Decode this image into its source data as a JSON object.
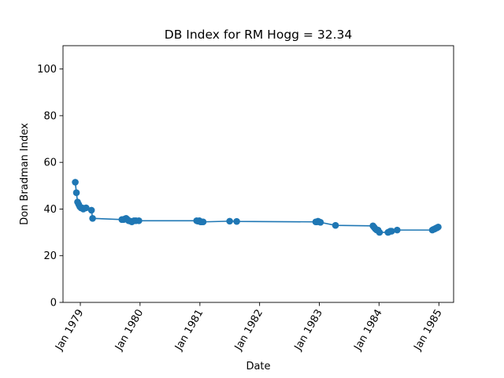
{
  "chart_data": {
    "type": "line",
    "title": "DB Index for RM Hogg = 32.34",
    "xlabel": "Date",
    "ylabel": "Don Bradman Index",
    "xlim": [
      "1978-09-17",
      "1985-04-01"
    ],
    "ylim": [
      0,
      110
    ],
    "x_ticks": [
      "Jan 1979",
      "Jan 1980",
      "Jan 1981",
      "Jan 1982",
      "Jan 1983",
      "Jan 1984",
      "Jan 1985"
    ],
    "y_ticks": [
      0,
      20,
      40,
      60,
      80,
      100
    ],
    "grid": false,
    "legend": "none",
    "series": [
      {
        "color": "#1f77b4",
        "marker": "circle",
        "x": [
          "1978-12-01",
          "1978-12-08",
          "1978-12-15",
          "1978-12-22",
          "1978-12-29",
          "1979-01-05",
          "1979-01-12",
          "1979-01-19",
          "1979-02-05",
          "1979-03-10",
          "1979-03-17",
          "1979-09-12",
          "1979-09-22",
          "1979-10-01",
          "1979-10-08",
          "1979-10-16",
          "1979-10-23",
          "1979-11-04",
          "1979-11-12",
          "1979-11-25",
          "1979-12-07",
          "1979-12-25",
          "1980-12-12",
          "1980-12-20",
          "1980-12-28",
          "1981-01-05",
          "1981-01-12",
          "1981-01-21",
          "1981-07-02",
          "1981-08-14",
          "1982-12-10",
          "1982-12-17",
          "1982-12-24",
          "1983-01-01",
          "1983-01-08",
          "1983-04-10",
          "1983-11-25",
          "1983-12-02",
          "1983-12-10",
          "1983-12-18",
          "1983-12-26",
          "1984-01-04",
          "1984-02-25",
          "1984-03-02",
          "1984-03-10",
          "1984-03-18",
          "1984-04-21",
          "1984-11-22",
          "1984-11-29",
          "1984-12-07",
          "1984-12-14",
          "1984-12-21",
          "1984-12-28"
        ],
        "values": [
          51.5,
          47,
          43,
          42,
          41,
          40.5,
          40.5,
          40,
          40.5,
          39.5,
          36,
          35.5,
          35.5,
          35.8,
          36,
          35.5,
          35,
          34.8,
          34.5,
          35,
          35,
          35,
          35,
          34.8,
          35,
          34.5,
          34.5,
          34.5,
          34.8,
          34.7,
          34.5,
          34.5,
          34.8,
          34.5,
          34.3,
          33,
          32.8,
          32.2,
          31.5,
          31,
          31,
          30,
          30,
          30.2,
          30.5,
          30.5,
          31,
          31,
          31.3,
          31.5,
          31.8,
          32,
          32.3
        ]
      }
    ]
  }
}
